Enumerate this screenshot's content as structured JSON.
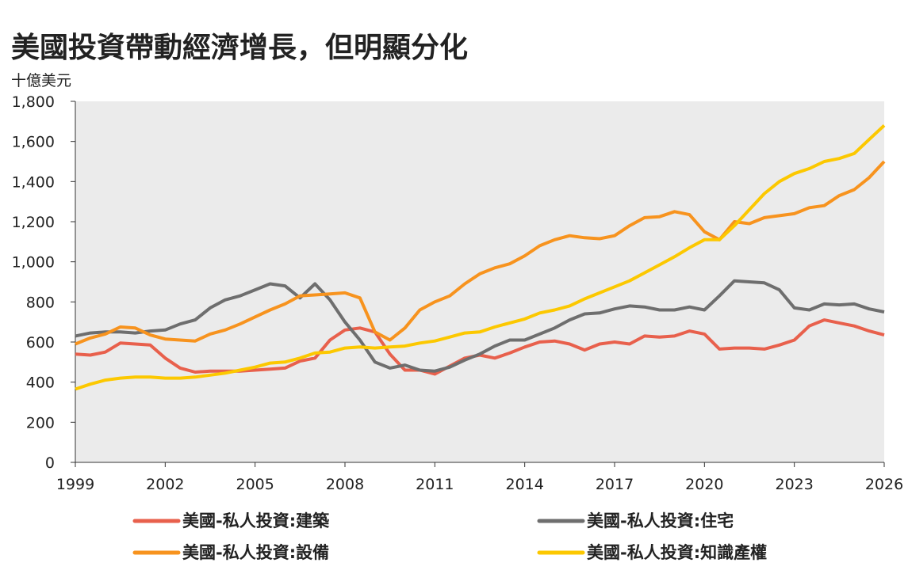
{
  "chart_data": {
    "type": "line",
    "title": "美國投資帶動經濟增長，但明顯分化",
    "y_axis_label": "十億美元",
    "x": [
      1999,
      1999.5,
      2000,
      2000.5,
      2001,
      2001.5,
      2002,
      2002.5,
      2003,
      2003.5,
      2004,
      2004.5,
      2005,
      2005.5,
      2006,
      2006.5,
      2007,
      2007.5,
      2008,
      2008.5,
      2009,
      2009.5,
      2010,
      2010.5,
      2011,
      2011.5,
      2012,
      2012.5,
      2013,
      2013.5,
      2014,
      2014.5,
      2015,
      2015.5,
      2016,
      2016.5,
      2017,
      2017.5,
      2018,
      2018.5,
      2019,
      2019.5,
      2020,
      2020.5,
      2021,
      2021.5,
      2022,
      2022.5,
      2023,
      2023.5,
      2024,
      2024.5,
      2025,
      2025.5,
      2026
    ],
    "series": [
      {
        "name": "美國-私人投資:建築",
        "color": "#e8604c",
        "values": [
          540,
          535,
          550,
          595,
          590,
          585,
          520,
          470,
          450,
          455,
          455,
          455,
          460,
          465,
          470,
          505,
          520,
          610,
          660,
          670,
          650,
          540,
          460,
          460,
          440,
          480,
          520,
          535,
          520,
          545,
          575,
          600,
          605,
          590,
          560,
          590,
          600,
          590,
          630,
          625,
          630,
          655,
          640,
          565,
          570,
          570,
          565,
          585,
          610,
          680,
          710,
          695,
          680,
          655,
          635
        ]
      },
      {
        "name": "美國-私人投資:住宅",
        "color": "#6e6e6e",
        "values": [
          630,
          645,
          650,
          650,
          645,
          655,
          660,
          690,
          710,
          770,
          810,
          830,
          860,
          890,
          880,
          820,
          890,
          810,
          700,
          610,
          500,
          470,
          485,
          460,
          455,
          475,
          510,
          540,
          580,
          610,
          610,
          640,
          670,
          710,
          740,
          745,
          765,
          780,
          775,
          760,
          760,
          775,
          760,
          830,
          905,
          900,
          895,
          860,
          770,
          760,
          790,
          785,
          790,
          765,
          750
        ]
      },
      {
        "name": "美國-私人投資:設備",
        "color": "#f7931e",
        "values": [
          590,
          620,
          640,
          675,
          670,
          635,
          615,
          610,
          605,
          640,
          660,
          690,
          725,
          760,
          790,
          830,
          835,
          840,
          845,
          820,
          650,
          610,
          670,
          760,
          800,
          830,
          890,
          940,
          970,
          990,
          1030,
          1080,
          1110,
          1130,
          1120,
          1115,
          1130,
          1180,
          1220,
          1225,
          1250,
          1235,
          1150,
          1110,
          1200,
          1190,
          1220,
          1230,
          1240,
          1270,
          1280,
          1330,
          1360,
          1420,
          1500
        ]
      },
      {
        "name": "美國-私人投資:知識產權",
        "color": "#fcc800",
        "values": [
          365,
          390,
          410,
          420,
          425,
          425,
          420,
          420,
          425,
          435,
          445,
          460,
          475,
          495,
          500,
          520,
          545,
          550,
          570,
          575,
          570,
          575,
          580,
          595,
          605,
          625,
          645,
          650,
          675,
          695,
          715,
          745,
          760,
          780,
          815,
          845,
          875,
          905,
          945,
          985,
          1025,
          1070,
          1110,
          1110,
          1180,
          1260,
          1340,
          1400,
          1440,
          1465,
          1500,
          1515,
          1540,
          1610,
          1680
        ]
      }
    ],
    "xlim": [
      1999,
      2026
    ],
    "xticks": [
      1999,
      2002,
      2005,
      2008,
      2011,
      2014,
      2017,
      2020,
      2023,
      2026
    ],
    "ylim": [
      0,
      1800
    ],
    "yticks": [
      0,
      200,
      400,
      600,
      800,
      {
        "value": 1000,
        "label": "1,000"
      },
      {
        "value": 1200,
        "label": "1,200"
      },
      {
        "value": 1400,
        "label": "1,400"
      },
      {
        "value": 1600,
        "label": "1,600"
      },
      {
        "value": 1800,
        "label": "1,800"
      }
    ]
  }
}
